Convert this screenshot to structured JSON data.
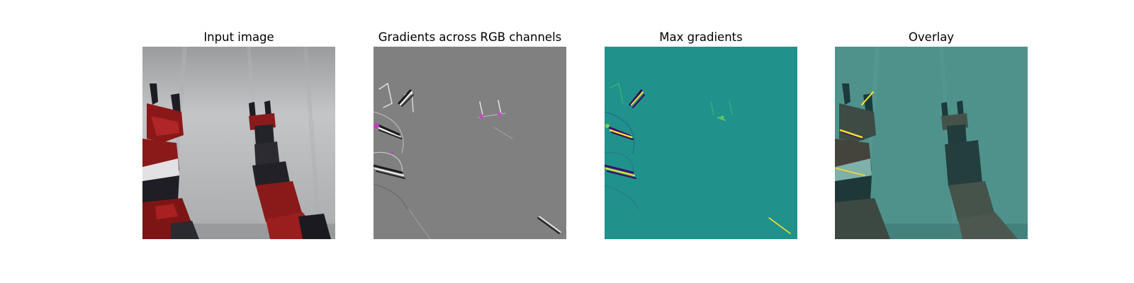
{
  "figure": {
    "panels": [
      {
        "title": "Input image"
      },
      {
        "title": "Gradients across RGB channels"
      },
      {
        "title": "Max gradients"
      },
      {
        "title": "Overlay"
      }
    ]
  },
  "colors": {
    "input_background": "#bbbdbf",
    "robot_red": "#8a1a1a",
    "robot_black": "#222228",
    "gradient_gray": "#808080",
    "viridis_background": "#21918c",
    "viridis_high": "#fde725",
    "overlay_tint": "#3f8f88"
  }
}
